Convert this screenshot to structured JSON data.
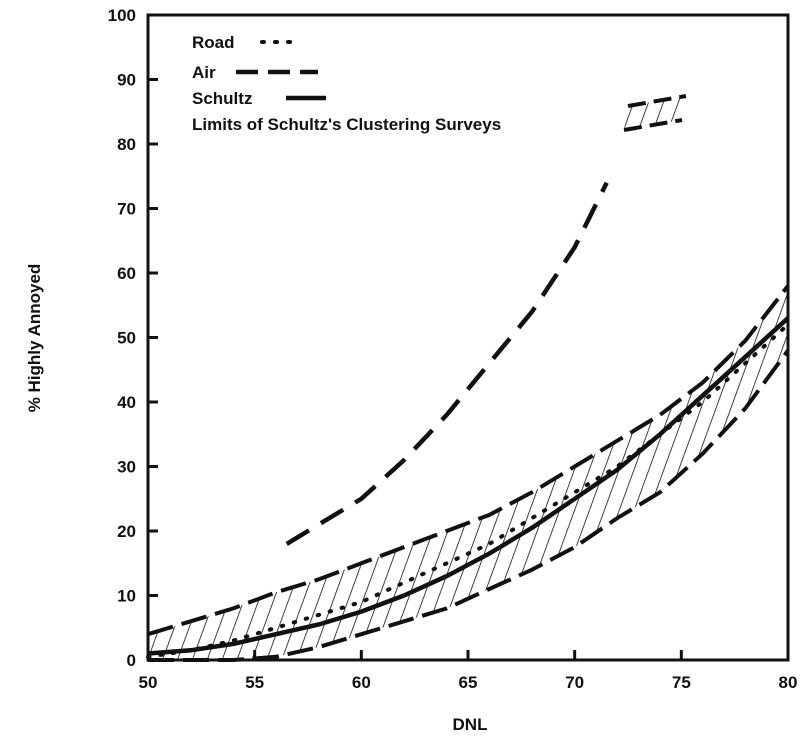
{
  "chart_data": {
    "type": "line",
    "xlabel": "DNL",
    "ylabel": "% Highly Annoyed",
    "xlim": [
      50,
      80
    ],
    "ylim": [
      0,
      100
    ],
    "xticks": [
      50,
      55,
      60,
      65,
      70,
      75,
      80
    ],
    "yticks": [
      0,
      10,
      20,
      30,
      40,
      50,
      60,
      70,
      80,
      90,
      100
    ],
    "grid": false,
    "legend_position": "top-left",
    "series": [
      {
        "name": "Road",
        "style": "dotted",
        "x": [
          50,
          52,
          54,
          56,
          58,
          60,
          62,
          64,
          66,
          68,
          70,
          72,
          74,
          76,
          78,
          80
        ],
        "y": [
          0.5,
          1.5,
          3,
          5,
          7,
          9,
          12,
          15,
          18,
          22,
          26,
          30,
          35,
          40,
          46,
          52
        ]
      },
      {
        "name": "Air",
        "style": "dashed",
        "x": [
          56.5,
          58,
          60,
          62,
          64,
          66,
          68,
          70,
          71.5
        ],
        "y": [
          18,
          21,
          25,
          31,
          38,
          46,
          54,
          64,
          74
        ]
      },
      {
        "name": "Schultz",
        "style": "solid",
        "x": [
          50,
          52,
          54,
          56,
          58,
          60,
          62,
          64,
          66,
          68,
          70,
          72,
          74,
          76,
          78,
          80
        ],
        "y": [
          1,
          1.5,
          2.5,
          4,
          5.5,
          7.5,
          10,
          13,
          16.5,
          20.5,
          25,
          29.5,
          35,
          41,
          47,
          53
        ]
      }
    ],
    "band": {
      "name": "Limits of Schultz's Clustering Surveys",
      "x": [
        50,
        52,
        54,
        56,
        58,
        60,
        62,
        64,
        66,
        68,
        70,
        72,
        74,
        76,
        78,
        80
      ],
      "upper": [
        4,
        6,
        8,
        10.5,
        12.5,
        15,
        17.5,
        20,
        22.5,
        26,
        30,
        34,
        38,
        43,
        49.5,
        58
      ],
      "lower": [
        0,
        0,
        0,
        0.5,
        2,
        4,
        6,
        8,
        11,
        14,
        17.5,
        22,
        26,
        32,
        39,
        48
      ]
    }
  }
}
